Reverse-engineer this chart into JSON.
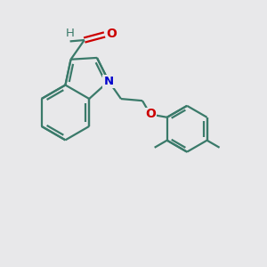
{
  "background_color": "#e8e8ea",
  "bond_color": "#3a7a6a",
  "N_color": "#0000cc",
  "O_color": "#cc0000",
  "H_color": "#3a7a6a",
  "line_width": 1.6,
  "figsize": [
    3.0,
    3.0
  ],
  "dpi": 100,
  "xlim": [
    0,
    10
  ],
  "ylim": [
    0,
    10
  ]
}
